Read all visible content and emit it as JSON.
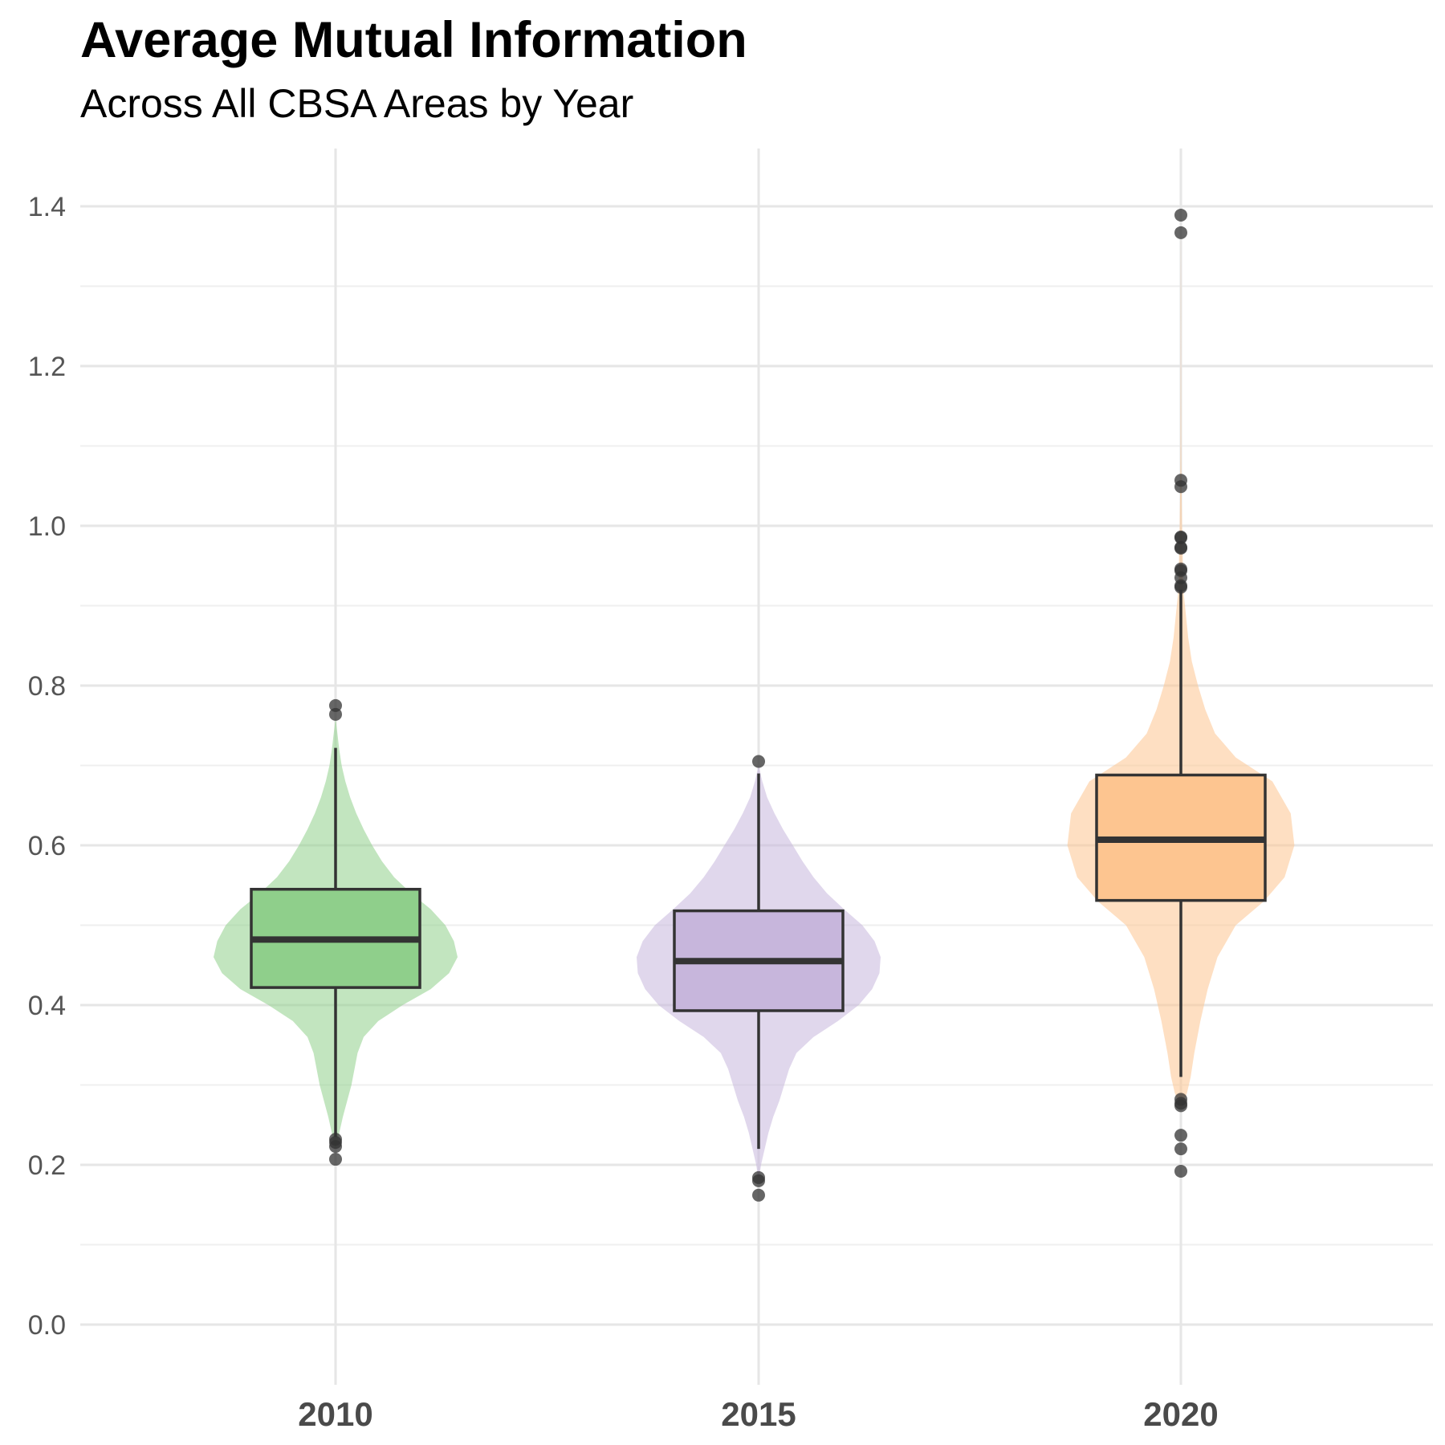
{
  "title": "Average Mutual Information",
  "subtitle": "Across All CBSA Areas by Year",
  "chart_data": {
    "type": "violin+box",
    "title": "Average Mutual Information",
    "subtitle": "Across All CBSA Areas by Year",
    "xlabel": "",
    "ylabel": "",
    "ylim": [
      -0.07,
      1.46
    ],
    "y_ticks": [
      "0.0",
      "0.2",
      "0.4",
      "0.6",
      "0.8",
      "1.0",
      "1.2",
      "1.4"
    ],
    "grid": true,
    "legend": "none",
    "categories": [
      "2010",
      "2015",
      "2020"
    ],
    "series": [
      {
        "category": "2010",
        "color": "#8fcf8b",
        "box": {
          "q1": 0.422,
          "median": 0.482,
          "q3": 0.545,
          "whisker_low": 0.235,
          "whisker_high": 0.722
        },
        "outliers": [
          0.775,
          0.764,
          0.232,
          0.228,
          0.223,
          0.207
        ],
        "violin": [
          [
            0.22,
            0.0
          ],
          [
            0.24,
            0.03
          ],
          [
            0.26,
            0.06
          ],
          [
            0.3,
            0.13
          ],
          [
            0.34,
            0.18
          ],
          [
            0.36,
            0.23
          ],
          [
            0.38,
            0.35
          ],
          [
            0.4,
            0.55
          ],
          [
            0.42,
            0.78
          ],
          [
            0.44,
            0.93
          ],
          [
            0.46,
            1.0
          ],
          [
            0.48,
            0.97
          ],
          [
            0.5,
            0.9
          ],
          [
            0.52,
            0.78
          ],
          [
            0.54,
            0.62
          ],
          [
            0.56,
            0.48
          ],
          [
            0.58,
            0.38
          ],
          [
            0.6,
            0.3
          ],
          [
            0.62,
            0.23
          ],
          [
            0.64,
            0.17
          ],
          [
            0.66,
            0.12
          ],
          [
            0.68,
            0.08
          ],
          [
            0.7,
            0.05
          ],
          [
            0.72,
            0.03
          ],
          [
            0.74,
            0.015
          ],
          [
            0.76,
            0.0
          ]
        ]
      },
      {
        "category": "2015",
        "color": "#c7b6dc",
        "box": {
          "q1": 0.393,
          "median": 0.455,
          "q3": 0.518,
          "whisker_low": 0.22,
          "whisker_high": 0.69
        },
        "outliers": [
          0.705,
          0.184,
          0.18,
          0.162
        ],
        "violin": [
          [
            0.18,
            0.0
          ],
          [
            0.2,
            0.02
          ],
          [
            0.22,
            0.05
          ],
          [
            0.24,
            0.08
          ],
          [
            0.26,
            0.12
          ],
          [
            0.28,
            0.17
          ],
          [
            0.3,
            0.21
          ],
          [
            0.32,
            0.25
          ],
          [
            0.34,
            0.31
          ],
          [
            0.36,
            0.45
          ],
          [
            0.38,
            0.65
          ],
          [
            0.4,
            0.82
          ],
          [
            0.42,
            0.93
          ],
          [
            0.44,
            0.99
          ],
          [
            0.46,
            1.0
          ],
          [
            0.48,
            0.95
          ],
          [
            0.5,
            0.85
          ],
          [
            0.52,
            0.7
          ],
          [
            0.54,
            0.56
          ],
          [
            0.56,
            0.45
          ],
          [
            0.58,
            0.36
          ],
          [
            0.6,
            0.28
          ],
          [
            0.62,
            0.2
          ],
          [
            0.64,
            0.13
          ],
          [
            0.66,
            0.07
          ],
          [
            0.68,
            0.03
          ],
          [
            0.7,
            0.0
          ]
        ]
      },
      {
        "category": "2020",
        "color": "#fdc590",
        "box": {
          "q1": 0.531,
          "median": 0.607,
          "q3": 0.688,
          "whisker_low": 0.31,
          "whisker_high": 0.92
        },
        "outliers": [
          1.389,
          1.367,
          1.057,
          1.049,
          0.986,
          0.985,
          0.973,
          0.972,
          0.946,
          0.944,
          0.935,
          0.925,
          0.923,
          0.282,
          0.277,
          0.274,
          0.237,
          0.22,
          0.192
        ],
        "violin": [
          [
            0.27,
            0.0
          ],
          [
            0.29,
            0.05
          ],
          [
            0.31,
            0.08
          ],
          [
            0.34,
            0.11
          ],
          [
            0.38,
            0.16
          ],
          [
            0.42,
            0.22
          ],
          [
            0.46,
            0.3
          ],
          [
            0.5,
            0.45
          ],
          [
            0.53,
            0.68
          ],
          [
            0.56,
            0.85
          ],
          [
            0.6,
            0.93
          ],
          [
            0.64,
            0.9
          ],
          [
            0.68,
            0.75
          ],
          [
            0.71,
            0.45
          ],
          [
            0.74,
            0.28
          ],
          [
            0.77,
            0.2
          ],
          [
            0.8,
            0.14
          ],
          [
            0.83,
            0.09
          ],
          [
            0.86,
            0.06
          ],
          [
            0.89,
            0.04
          ],
          [
            0.92,
            0.02
          ],
          [
            0.96,
            0.015
          ],
          [
            1.0,
            0.01
          ],
          [
            1.05,
            0.005
          ],
          [
            1.1,
            0.003
          ],
          [
            1.2,
            0.002
          ],
          [
            1.3,
            0.001
          ],
          [
            1.38,
            0.0
          ]
        ]
      }
    ]
  }
}
